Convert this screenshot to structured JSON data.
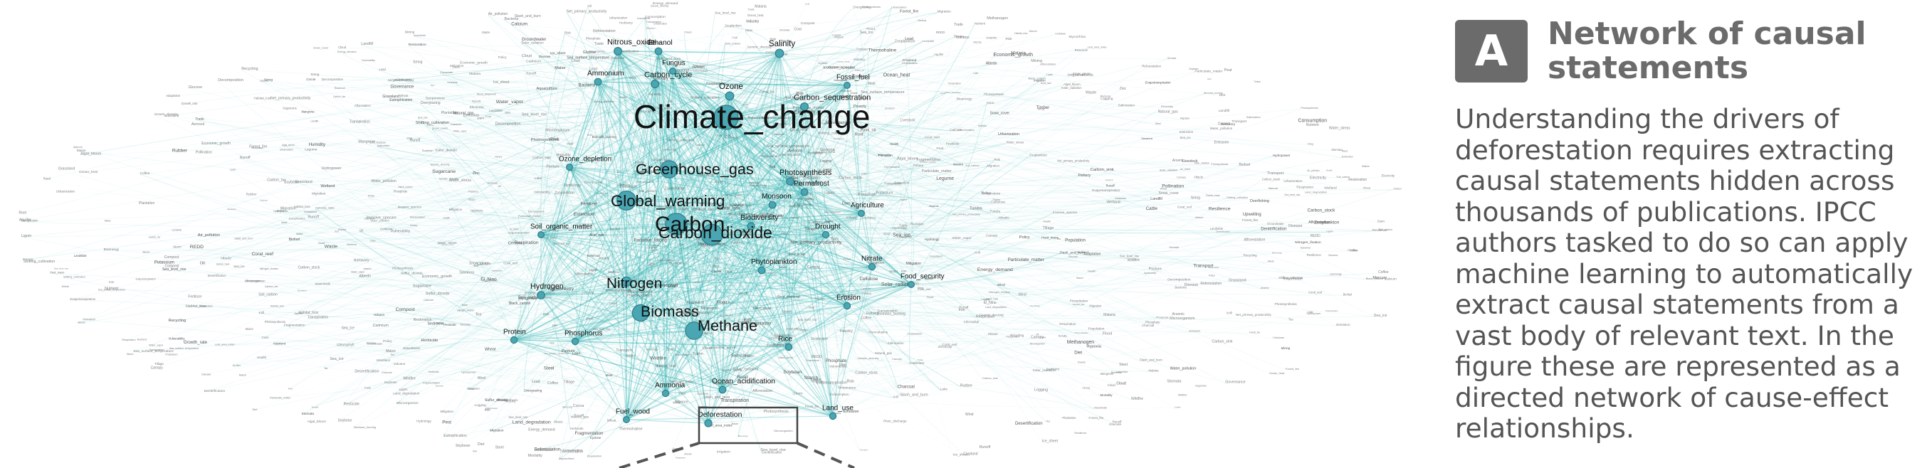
{
  "panel": {
    "badge": "A",
    "title": "Network of causal statements",
    "body": "Understanding the drivers of deforestation requires extracting causal statements hidden across thousands of publications. IPCC authors tasked to do so can apply machine learning to automatically extract causal statements from a vast body of relevant text. In the figure these are represented as a directed network of cause-effect relationships."
  },
  "colors": {
    "edge": "#3fb8b8",
    "node": "#4aa6b2",
    "node_stroke": "#2e7f8a",
    "highlight_box": "#444444"
  },
  "network": {
    "major_nodes": [
      {
        "label": "Climate_change",
        "weight": 1.0
      },
      {
        "label": "Carbon",
        "weight": 0.85
      },
      {
        "label": "Carbon_dioxide",
        "weight": 0.8
      },
      {
        "label": "Global_warming",
        "weight": 0.7
      },
      {
        "label": "Greenhouse_gas",
        "weight": 0.6
      },
      {
        "label": "Methane",
        "weight": 0.6
      },
      {
        "label": "Biomass",
        "weight": 0.55
      },
      {
        "label": "Nitrogen",
        "weight": 0.45
      },
      {
        "label": "Ozone",
        "weight": 0.35
      },
      {
        "label": "Salinity",
        "weight": 0.35
      },
      {
        "label": "Carbon_cycle",
        "weight": 0.3
      },
      {
        "label": "Carbon_sequestration",
        "weight": 0.3
      },
      {
        "label": "Nitrous_oxide",
        "weight": 0.3
      },
      {
        "label": "Hydrogen",
        "weight": 0.28
      },
      {
        "label": "Photosynthesis",
        "weight": 0.28
      },
      {
        "label": "Biodiversity",
        "weight": 0.25
      },
      {
        "label": "Deforestation",
        "weight": 0.25
      },
      {
        "label": "Ethanol",
        "weight": 0.22
      },
      {
        "label": "Ammonium",
        "weight": 0.22
      },
      {
        "label": "Monsoon",
        "weight": 0.22
      },
      {
        "label": "Permafrost",
        "weight": 0.22
      },
      {
        "label": "Ocean_acidification",
        "weight": 0.22
      },
      {
        "label": "Phytoplankton",
        "weight": 0.22
      },
      {
        "label": "Protein",
        "weight": 0.2
      },
      {
        "label": "Phosphorus",
        "weight": 0.2
      },
      {
        "label": "Nitrate",
        "weight": 0.2
      },
      {
        "label": "Rice",
        "weight": 0.2
      },
      {
        "label": "Ammonia",
        "weight": 0.2
      },
      {
        "label": "Drought",
        "weight": 0.2
      },
      {
        "label": "Erosion",
        "weight": 0.2
      },
      {
        "label": "Land_use",
        "weight": 0.2
      },
      {
        "label": "Soil_organic_matter",
        "weight": 0.18
      },
      {
        "label": "Agriculture",
        "weight": 0.18
      },
      {
        "label": "Food_security",
        "weight": 0.18
      },
      {
        "label": "Fuel_wood",
        "weight": 0.18
      },
      {
        "label": "Fungus",
        "weight": 0.18
      },
      {
        "label": "Fossil_fuel",
        "weight": 0.18
      },
      {
        "label": "Ozone_depletion",
        "weight": 0.18
      }
    ],
    "minor_labels": [
      "Photosynthesis",
      "Denitrification",
      "Desertification",
      "Albedo",
      "Aerosol",
      "Precipitation",
      "Evapotranspiration",
      "Sea_level_rise",
      "Wildfire",
      "Urbanization",
      "Logging",
      "Pasture",
      "Cattle",
      "Soybean",
      "Palm_oil",
      "Irrigation",
      "Fertilizer",
      "Nutrient",
      "Sediment",
      "Runoff",
      "Flood",
      "Heat_wave",
      "El_Nino",
      "Coral_reef",
      "Mangrove",
      "Wetland",
      "Peat",
      "Tundra",
      "Savanna",
      "Grassland",
      "Cropland",
      "Forest_fire",
      "Charcoal",
      "Timber",
      "Mining",
      "Road",
      "Migration",
      "Poverty",
      "Population",
      "Economic_growth",
      "Trade",
      "Policy",
      "Governance",
      "REDD",
      "Carbon_tax",
      "Emission",
      "Sulfur_dioxide",
      "Black_carbon",
      "Methanogen",
      "Bacteria",
      "Microorganism",
      "Respiration",
      "Decomposition",
      "Lignin",
      "Cellulose",
      "Glucose",
      "Starch",
      "Chlorophyll",
      "Stomata",
      "Transpiration",
      "Leaf_area_index",
      "Root",
      "Canopy",
      "Biomass_burning",
      "Bioenergy",
      "Biofuel",
      "Maize",
      "Wheat",
      "Sugarcane",
      "Livestock",
      "Manure",
      "Compost",
      "Tillage",
      "Agroforestry",
      "Reforestation",
      "Afforestation",
      "Restoration",
      "Invasive_species",
      "Extinction",
      "Habitat_loss",
      "Fragmentation",
      "Pollination",
      "Seed_dispersal",
      "Herbivory",
      "Pest",
      "Disease",
      "Malaria",
      "Water_stress",
      "Salinization",
      "Acid_rain",
      "Smog",
      "Particulate_matter",
      "Air_pollution",
      "Water_pollution",
      "Eutrophication",
      "Hypoxia",
      "Algal_bloom",
      "Zooplankton",
      "Krill",
      "Fishery",
      "Overfishing",
      "Aquaculture",
      "Ice_sheet",
      "Glacier",
      "Snow_cover",
      "Sea_ice",
      "Ocean_heat",
      "Thermohaline",
      "Upwelling",
      "Cloud",
      "Water_vapor",
      "Radiative_forcing",
      "Solar_radiation",
      "Volcano",
      "Carbon_sink",
      "Carbon_stock",
      "Soil_carbon",
      "Net_primary_productivity",
      "Growth_rate",
      "Temperature",
      "Humidity",
      "Wind",
      "Storm",
      "Cyclone",
      "Landslide",
      "Sea_surface_temperature",
      "Hydrology",
      "Groundwater",
      "Aquifer",
      "River_discharge",
      "Lake",
      "Reservoir",
      "Dam",
      "Hydropower",
      "Energy_demand",
      "Electricity",
      "Coal",
      "Natural_gas",
      "Oil",
      "Transport",
      "Industry",
      "Cement",
      "Steel",
      "Waste",
      "Landfill",
      "Recycling",
      "Consumption",
      "Diet",
      "Meat",
      "Health",
      "Mortality",
      "Nitrogen_fixation",
      "Legume",
      "Mycorrhiza",
      "Phosphate",
      "Potassium",
      "Calcium",
      "Iron",
      "Zinc",
      "Mercury",
      "Lead",
      "Cadmium",
      "Arsenic",
      "Pesticide",
      "Herbicide",
      "Insecticide",
      "Genetic_diversity",
      "Adaptation",
      "Mitigation",
      "Resilience",
      "Vulnerability",
      "Risk",
      "Land_degradation",
      "Overgrazing",
      "Shifting_cultivation",
      "Slash_and_burn",
      "Plantation",
      "Rubber",
      "Cocoa",
      "Coffee",
      "Tea"
    ]
  }
}
